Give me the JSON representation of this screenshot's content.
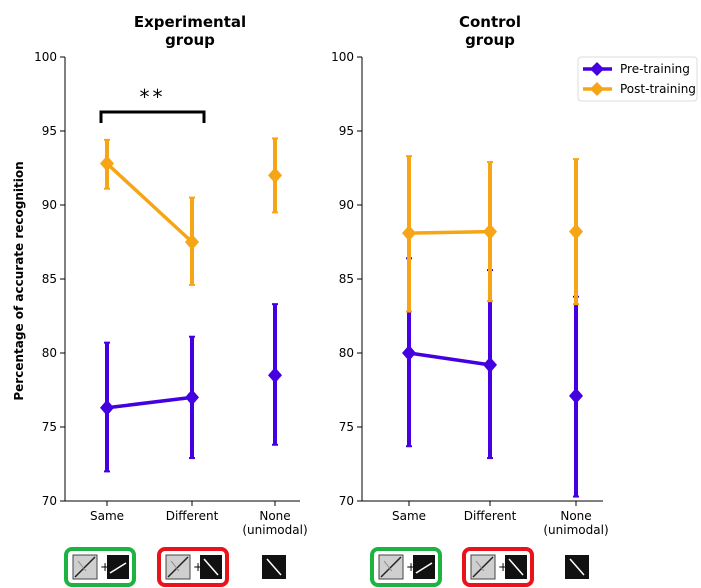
{
  "chart_data": [
    {
      "type": "line",
      "title_lines": [
        "Experimental",
        "group"
      ],
      "ylabel": "Percentage of accurate recognition",
      "ylim": [
        70,
        100
      ],
      "yticks": [
        70,
        75,
        80,
        85,
        90,
        95,
        100
      ],
      "categories": [
        "Same",
        "Different",
        "None (unimodal)"
      ],
      "category_label_lines": [
        [
          "Same"
        ],
        [
          "Different"
        ],
        [
          "None",
          "(unimodal)"
        ]
      ],
      "connected_categories": 2,
      "series": [
        {
          "name": "Pre-training",
          "color": "#4400e0",
          "values": [
            76.3,
            77.0,
            78.5
          ],
          "lower": [
            72.0,
            72.9,
            73.8
          ],
          "upper": [
            80.7,
            81.1,
            83.3
          ]
        },
        {
          "name": "Post-training",
          "color": "#f5a516",
          "values": [
            92.8,
            87.5,
            92.0
          ],
          "lower": [
            91.1,
            84.6,
            89.5
          ],
          "upper": [
            94.4,
            90.5,
            94.5
          ]
        }
      ],
      "annotation": {
        "text": "**",
        "between": [
          "Same",
          "Different"
        ]
      },
      "condition_icons": [
        {
          "category": "Same",
          "frame_color": "#1db341",
          "icon": "visual-plus-matching-line-icon"
        },
        {
          "category": "Different",
          "frame_color": "#e8131b",
          "icon": "visual-plus-different-line-icon"
        },
        {
          "category": "None (unimodal)",
          "frame_color": "",
          "icon": "single-line-icon"
        }
      ]
    },
    {
      "type": "line",
      "title_lines": [
        "Control",
        "group"
      ],
      "ylim": [
        70,
        100
      ],
      "yticks": [
        70,
        75,
        80,
        85,
        90,
        95,
        100
      ],
      "categories": [
        "Same",
        "Different",
        "None (unimodal)"
      ],
      "category_label_lines": [
        [
          "Same"
        ],
        [
          "Different"
        ],
        [
          "None",
          "(unimodal)"
        ]
      ],
      "connected_categories": 2,
      "series": [
        {
          "name": "Pre-training",
          "color": "#4400e0",
          "values": [
            80.0,
            79.2,
            77.1
          ],
          "lower": [
            73.7,
            72.9,
            70.3
          ],
          "upper": [
            86.4,
            85.6,
            83.8
          ]
        },
        {
          "name": "Post-training",
          "color": "#f5a516",
          "values": [
            88.1,
            88.2,
            88.2
          ],
          "lower": [
            82.8,
            83.5,
            83.3
          ],
          "upper": [
            93.3,
            92.9,
            93.1
          ]
        }
      ],
      "legend": {
        "placement": "top-right",
        "entries": [
          {
            "label": "Pre-training",
            "color": "#4400e0"
          },
          {
            "label": "Post-training",
            "color": "#f5a516"
          }
        ]
      },
      "condition_icons": [
        {
          "category": "Same",
          "frame_color": "#1db341",
          "icon": "visual-plus-matching-line-icon"
        },
        {
          "category": "Different",
          "frame_color": "#e8131b",
          "icon": "visual-plus-different-line-icon"
        },
        {
          "category": "None (unimodal)",
          "frame_color": "",
          "icon": "single-line-icon"
        }
      ]
    }
  ]
}
